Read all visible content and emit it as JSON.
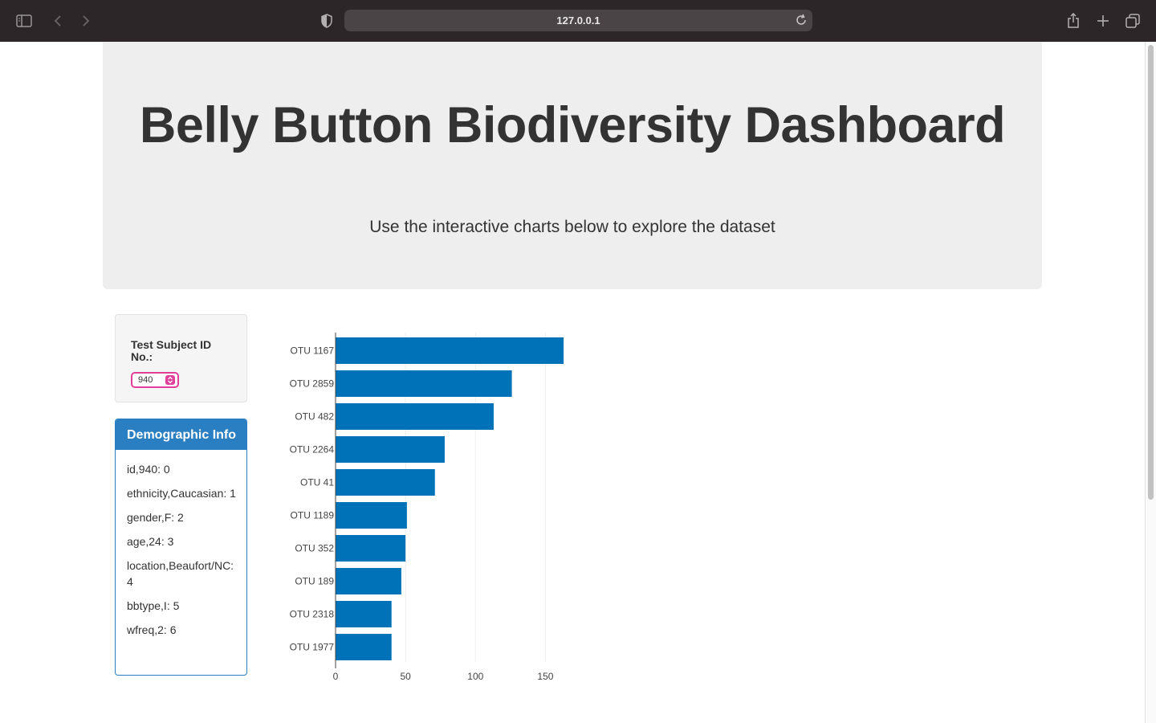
{
  "browser": {
    "url": "127.0.0.1"
  },
  "header": {
    "title": "Belly Button Biodiversity Dashboard",
    "subtitle": "Use the interactive charts below to explore the dataset"
  },
  "selector": {
    "label": "Test Subject ID No.:",
    "value": "940"
  },
  "demographics": {
    "title": "Demographic Info",
    "rows": [
      "id,940: 0",
      "ethnicity,Caucasian: 1",
      "gender,F: 2",
      "age,24: 3",
      "location,Beaufort/NC: 4",
      "bbtype,I: 5",
      "wfreq,2: 6"
    ]
  },
  "chart_data": {
    "type": "bar",
    "orientation": "horizontal",
    "categories": [
      "OTU 1167",
      "OTU 2859",
      "OTU 482",
      "OTU 2264",
      "OTU 41",
      "OTU 1189",
      "OTU 352",
      "OTU 189",
      "OTU 2318",
      "OTU 1977"
    ],
    "values": [
      163,
      126,
      113,
      78,
      71,
      51,
      50,
      47,
      40,
      40
    ],
    "xticks": [
      0,
      50,
      100,
      150
    ],
    "xlim": [
      0,
      175
    ],
    "bar_color": "#0072b8",
    "grid": true
  },
  "colors": {
    "accent": "#2a7ec2",
    "select_focus": "#e0409a"
  }
}
